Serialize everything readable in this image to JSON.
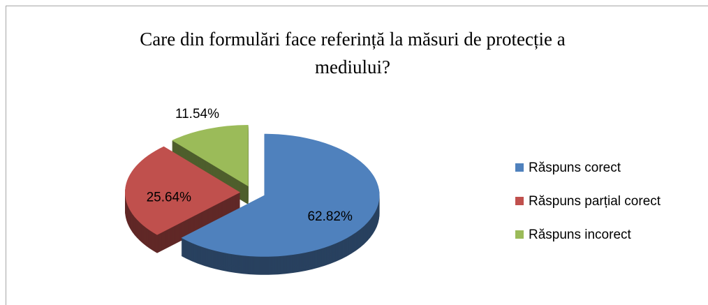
{
  "chart_data": {
    "type": "pie3d",
    "title": "Care din formulări face referință la măsuri de protecție a mediului?",
    "categories": [
      "Răspuns corect",
      "Răspuns parțial corect",
      "Răspuns incorect"
    ],
    "values": [
      62.82,
      25.64,
      11.54
    ],
    "value_labels": [
      "62.82%",
      "25.64%",
      "11.54%"
    ],
    "colors": [
      "#4f81bd",
      "#c0504d",
      "#9bbb59"
    ],
    "legend": "right"
  }
}
